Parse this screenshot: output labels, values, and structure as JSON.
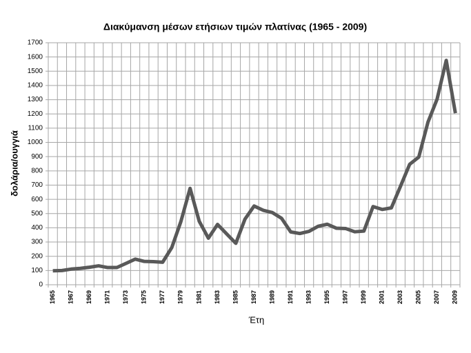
{
  "chart_data": {
    "type": "line",
    "title": "Διακύμανση μέσων ετήσιων τιμών πλατίνας (1965 - 2009)",
    "x_label": "Έτη",
    "y_label": "δολάρια/ουγγιά",
    "categories": [
      "1965",
      null,
      "1967",
      null,
      "1969",
      null,
      "1971",
      null,
      "1973",
      null,
      "1975",
      null,
      "1977",
      null,
      "1979",
      null,
      "1981",
      null,
      "1983",
      null,
      "1985",
      null,
      "1987",
      null,
      "1989",
      null,
      "1991",
      null,
      "1993",
      null,
      "1995",
      null,
      "1997",
      null,
      "1999",
      null,
      "2001",
      null,
      "2003",
      null,
      "2005",
      null,
      "2007",
      null,
      "2009"
    ],
    "values": [
      98,
      100,
      110,
      115,
      123,
      133,
      121,
      121,
      150,
      180,
      164,
      162,
      158,
      261,
      445,
      677,
      446,
      327,
      424,
      357,
      291,
      461,
      553,
      523,
      507,
      467,
      371,
      360,
      375,
      411,
      425,
      397,
      395,
      372,
      377,
      549,
      529,
      540,
      692,
      846,
      897,
      1142,
      1304,
      1576,
      1205
    ],
    "color": "#595959",
    "ylim": [
      0,
      1700
    ],
    "yticks": [
      0,
      100,
      200,
      300,
      400,
      500,
      600,
      700,
      800,
      900,
      1000,
      1100,
      1200,
      1300,
      1400,
      1500,
      1600,
      1700
    ],
    "grid": true
  }
}
